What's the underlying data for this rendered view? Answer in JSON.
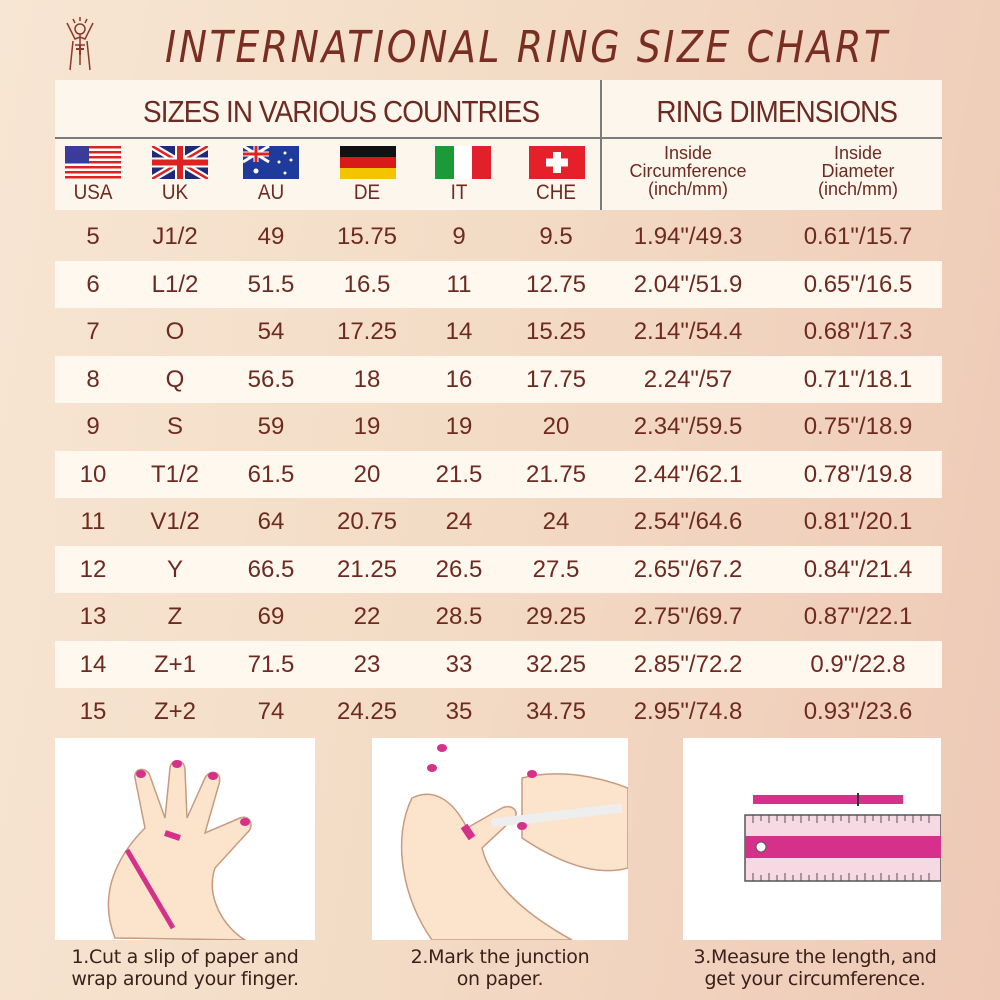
{
  "title": "INTERNATIONAL RING SIZE CHART",
  "header": {
    "countries_title": "SIZES IN VARIOUS COUNTRIES",
    "dimensions_title": "RING DIMENSIONS",
    "countries": [
      {
        "code": "USA",
        "flag": "us-flag-icon"
      },
      {
        "code": "UK",
        "flag": "uk-flag-icon"
      },
      {
        "code": "AU",
        "flag": "au-flag-icon"
      },
      {
        "code": "DE",
        "flag": "de-flag-icon"
      },
      {
        "code": "IT",
        "flag": "it-flag-icon"
      },
      {
        "code": "CHE",
        "flag": "ch-flag-icon"
      }
    ],
    "circumference": {
      "l1": "Inside",
      "l2": "Circumference",
      "l3": "(inch/mm)"
    },
    "diameter": {
      "l1": "Inside",
      "l2": "Diameter",
      "l3": "(inch/mm)"
    }
  },
  "rows": [
    [
      "5",
      "J1/2",
      "49",
      "15.75",
      "9",
      "9.5",
      "1.94\"/49.3",
      "0.61\"/15.7"
    ],
    [
      "6",
      "L1/2",
      "51.5",
      "16.5",
      "11",
      "12.75",
      "2.04\"/51.9",
      "0.65\"/16.5"
    ],
    [
      "7",
      "O",
      "54",
      "17.25",
      "14",
      "15.25",
      "2.14\"/54.4",
      "0.68\"/17.3"
    ],
    [
      "8",
      "Q",
      "56.5",
      "18",
      "16",
      "17.75",
      "2.24\"/57",
      "0.71\"/18.1"
    ],
    [
      "9",
      "S",
      "59",
      "19",
      "19",
      "20",
      "2.34\"/59.5",
      "0.75\"/18.9"
    ],
    [
      "10",
      "T1/2",
      "61.5",
      "20",
      "21.5",
      "21.75",
      "2.44\"/62.1",
      "0.78\"/19.8"
    ],
    [
      "11",
      "V1/2",
      "64",
      "20.75",
      "24",
      "24",
      "2.54\"/64.6",
      "0.81\"/20.1"
    ],
    [
      "12",
      "Y",
      "66.5",
      "21.25",
      "26.5",
      "27.5",
      "2.65\"/67.2",
      "0.84\"/21.4"
    ],
    [
      "13",
      "Z",
      "69",
      "22",
      "28.5",
      "29.25",
      "2.75\"/69.7",
      "0.87\"/22.1"
    ],
    [
      "14",
      "Z+1",
      "71.5",
      "23",
      "33",
      "32.25",
      "2.85\"/72.2",
      "0.9\"/22.8"
    ],
    [
      "15",
      "Z+2",
      "74",
      "24.25",
      "35",
      "34.75",
      "2.95\"/74.8",
      "0.93\"/23.6"
    ]
  ],
  "steps": [
    {
      "l1": "1.Cut a slip of paper and",
      "l2": "wrap around your finger."
    },
    {
      "l1": "2.Mark the junction",
      "l2": "on paper."
    },
    {
      "l1": "3.Measure the length, and",
      "l2": "get your circumference."
    }
  ],
  "colors": {
    "text": "#6e2a20",
    "accent": "#d6318a",
    "row_light": "#fef8ef"
  }
}
